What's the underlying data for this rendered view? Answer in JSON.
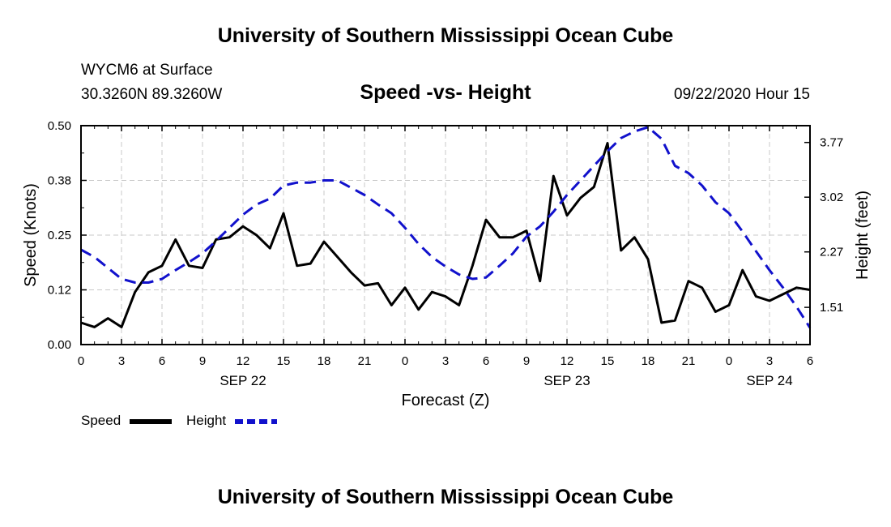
{
  "header": {
    "title": "University of Southern Mississippi Ocean Cube",
    "station": "WYCM6 at Surface",
    "coords": "30.3260N 89.3260W",
    "plot_title": "Speed -vs- Height",
    "timestamp": "09/22/2020 Hour 15"
  },
  "footer": {
    "title": "University of Southern Mississippi Ocean Cube"
  },
  "legend": {
    "speed_label": "Speed",
    "height_label": "Height"
  },
  "colors": {
    "speed": "#000000",
    "height": "#1111cc",
    "grid": "#c8c8c8"
  },
  "chart_data": {
    "type": "line",
    "title": "Speed -vs- Height",
    "xlabel": "Forecast (Z)",
    "ylabel": "Speed (Knots)",
    "ylabel_right": "Height (feet)",
    "xlim": [
      0,
      54
    ],
    "ylim": [
      0,
      0.5
    ],
    "ylim_right": [
      1.0,
      4.0
    ],
    "x_ticks": [
      0,
      3,
      6,
      9,
      12,
      15,
      18,
      21,
      24,
      27,
      30,
      33,
      36,
      39,
      42,
      45,
      48,
      51,
      54
    ],
    "x_tick_labels": [
      "0",
      "3",
      "6",
      "9",
      "12",
      "15",
      "18",
      "21",
      "0",
      "3",
      "6",
      "9",
      "12",
      "15",
      "18",
      "21",
      "0",
      "3",
      "6"
    ],
    "date_labels": [
      {
        "x": 12,
        "label": "SEP 22"
      },
      {
        "x": 36,
        "label": "SEP 23"
      },
      {
        "x": 51,
        "label": "SEP 24"
      }
    ],
    "y_ticks_left": [
      0,
      0.125,
      0.25,
      0.375,
      0.5
    ],
    "y_tick_labels_left": [
      "0.00",
      "0.12",
      "0.25",
      "0.38",
      "0.50"
    ],
    "y_ticks_right": [
      1.51,
      2.27,
      3.02,
      3.77
    ],
    "y_tick_labels_right": [
      "1.51",
      "2.27",
      "3.02",
      "3.77"
    ],
    "grid": true,
    "legend_position": "bottom-left",
    "series": [
      {
        "name": "Speed",
        "axis": "left",
        "x": [
          0,
          1,
          2,
          3,
          4,
          5,
          6,
          7,
          8,
          9,
          10,
          11,
          12,
          13,
          14,
          15,
          16,
          17,
          18,
          19,
          20,
          21,
          22,
          23,
          24,
          25,
          26,
          27,
          28,
          29,
          30,
          31,
          32,
          33,
          34,
          35,
          36,
          37,
          38,
          39,
          40,
          41,
          42,
          43,
          44,
          45,
          46,
          47,
          48,
          49,
          50,
          51,
          52,
          53,
          54
        ],
        "values": [
          0.05,
          0.04,
          0.06,
          0.04,
          0.12,
          0.165,
          0.18,
          0.24,
          0.18,
          0.175,
          0.24,
          0.245,
          0.27,
          0.25,
          0.22,
          0.3,
          0.18,
          0.185,
          0.235,
          0.2,
          0.165,
          0.135,
          0.14,
          0.09,
          0.13,
          0.08,
          0.12,
          0.11,
          0.09,
          0.18,
          0.285,
          0.245,
          0.245,
          0.26,
          0.145,
          0.385,
          0.295,
          0.335,
          0.36,
          0.46,
          0.215,
          0.245,
          0.195,
          0.05,
          0.055,
          0.145,
          0.13,
          0.075,
          0.09,
          0.17,
          0.11,
          0.1,
          0.115,
          0.13,
          0.125
        ]
      },
      {
        "name": "Height",
        "axis": "right",
        "x": [
          0,
          1,
          2,
          3,
          4,
          5,
          6,
          7,
          8,
          9,
          10,
          11,
          12,
          13,
          14,
          15,
          16,
          17,
          18,
          19,
          20,
          21,
          22,
          23,
          24,
          25,
          26,
          27,
          28,
          29,
          30,
          31,
          32,
          33,
          34,
          35,
          36,
          37,
          38,
          39,
          40,
          41,
          42,
          43,
          44,
          45,
          46,
          47,
          48,
          49,
          50,
          51,
          52,
          53,
          54
        ],
        "values": [
          2.3,
          2.2,
          2.05,
          1.9,
          1.85,
          1.85,
          1.9,
          2.02,
          2.13,
          2.25,
          2.42,
          2.6,
          2.78,
          2.92,
          3.0,
          3.18,
          3.22,
          3.22,
          3.25,
          3.25,
          3.15,
          3.05,
          2.92,
          2.8,
          2.6,
          2.38,
          2.2,
          2.07,
          1.96,
          1.9,
          1.92,
          2.08,
          2.25,
          2.48,
          2.62,
          2.82,
          3.05,
          3.25,
          3.45,
          3.65,
          3.83,
          3.92,
          3.98,
          3.82,
          3.45,
          3.35,
          3.18,
          2.95,
          2.8,
          2.55,
          2.28,
          2.02,
          1.78,
          1.52,
          1.23
        ]
      }
    ]
  }
}
